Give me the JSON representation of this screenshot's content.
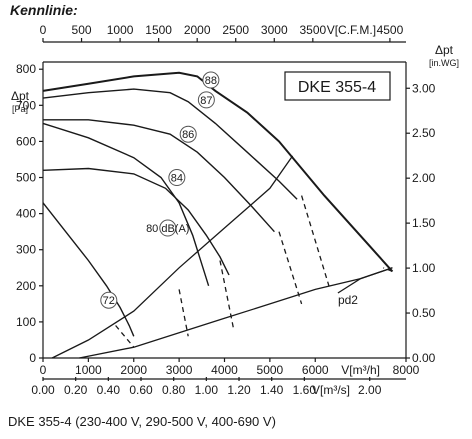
{
  "heading": "Kennlinie:",
  "caption": "DKE 355-4 (230-400 V, 290-500 V, 400-690 V)",
  "chart_data": {
    "type": "line",
    "title": "DKE 355-4",
    "colors": {
      "line": "#1a1a1a",
      "grid": "#d8d8d8"
    },
    "x_bottom": {
      "label": "V[m³/h]",
      "ticks": [
        0,
        1000,
        2000,
        3000,
        4000,
        5000,
        6000,
        8000
      ],
      "range": [
        0,
        8000
      ]
    },
    "x_bottom2": {
      "label": "V[m³/s]",
      "ticks": [
        "0.00",
        "0.20",
        "0.40",
        "0.60",
        "0.80",
        "1.00",
        "1.20",
        "1.40",
        "1.60",
        "2.00"
      ]
    },
    "x_top": {
      "label": "V[C.F.M.]",
      "ticks": [
        0,
        500,
        1000,
        1500,
        2000,
        2500,
        3000,
        3500,
        4500
      ]
    },
    "y_left": {
      "label": "Δpt",
      "sublabel": "[Pa]",
      "ticks": [
        0,
        100,
        200,
        300,
        400,
        500,
        600,
        700,
        800
      ],
      "range": [
        0,
        820
      ]
    },
    "y_right": {
      "label": "Δpt",
      "sublabel": "[in.WG]",
      "ticks": [
        "0.00",
        "0.50",
        "1.00",
        "1.50",
        "2.00",
        "2.50",
        "3.00"
      ]
    },
    "pd2_label": "pd2",
    "grid": false,
    "curves": [
      {
        "label": "88",
        "points": [
          [
            0,
            740
          ],
          [
            1000,
            760
          ],
          [
            2000,
            780
          ],
          [
            3000,
            790
          ],
          [
            3400,
            780
          ],
          [
            3800,
            740
          ],
          [
            4500,
            680
          ],
          [
            5200,
            600
          ],
          [
            6200,
            450
          ],
          [
            7200,
            310
          ],
          [
            7700,
            240
          ]
        ]
      },
      {
        "label": "87",
        "points": [
          [
            0,
            720
          ],
          [
            1000,
            735
          ],
          [
            2000,
            745
          ],
          [
            2800,
            735
          ],
          [
            3200,
            710
          ],
          [
            3800,
            650
          ],
          [
            4500,
            570
          ],
          [
            5200,
            490
          ],
          [
            5600,
            440
          ]
        ]
      },
      {
        "label": "86",
        "points": [
          [
            0,
            660
          ],
          [
            1000,
            660
          ],
          [
            2000,
            645
          ],
          [
            2800,
            620
          ],
          [
            3400,
            570
          ],
          [
            4000,
            500
          ],
          [
            4600,
            420
          ],
          [
            5100,
            350
          ]
        ]
      },
      {
        "label": "84",
        "points": [
          [
            0,
            520
          ],
          [
            1000,
            525
          ],
          [
            2000,
            510
          ],
          [
            2700,
            470
          ],
          [
            3200,
            410
          ],
          [
            3600,
            340
          ],
          [
            3900,
            280
          ],
          [
            4100,
            230
          ]
        ]
      },
      {
        "label": "80 dB(A)",
        "points": [
          [
            0,
            650
          ],
          [
            1000,
            610
          ],
          [
            2000,
            555
          ],
          [
            2600,
            500
          ],
          [
            3000,
            430
          ],
          [
            3300,
            340
          ],
          [
            3550,
            240
          ],
          [
            3650,
            200
          ]
        ]
      },
      {
        "label": "72",
        "points": [
          [
            0,
            430
          ],
          [
            500,
            350
          ],
          [
            1000,
            270
          ],
          [
            1400,
            200
          ],
          [
            1700,
            140
          ],
          [
            1900,
            90
          ],
          [
            2000,
            60
          ]
        ]
      }
    ],
    "operating_limits": [
      [
        [
          1600,
          90
        ],
        [
          2000,
          30
        ]
      ],
      [
        [
          3000,
          190
        ],
        [
          3200,
          60
        ]
      ],
      [
        [
          3900,
          270
        ],
        [
          4200,
          80
        ]
      ],
      [
        [
          5200,
          350
        ],
        [
          5700,
          150
        ]
      ],
      [
        [
          5700,
          450
        ],
        [
          6300,
          200
        ]
      ],
      [
        [
          7700,
          240
        ],
        [
          7500,
          250
        ]
      ]
    ],
    "system_curves": [
      {
        "label": "pd2",
        "points": [
          [
            800,
            0
          ],
          [
            2000,
            30
          ],
          [
            3000,
            70
          ],
          [
            4000,
            110
          ],
          [
            5000,
            150
          ],
          [
            6000,
            190
          ],
          [
            7000,
            220
          ],
          [
            7700,
            250
          ]
        ]
      },
      {
        "points": [
          [
            200,
            0
          ],
          [
            1000,
            50
          ],
          [
            2000,
            130
          ],
          [
            3000,
            250
          ],
          [
            4000,
            360
          ],
          [
            5000,
            470
          ],
          [
            5500,
            560
          ]
        ]
      },
      {
        "points": [
          [
            7700,
            250
          ],
          [
            7000,
            220
          ],
          [
            6500,
            180
          ]
        ]
      }
    ]
  }
}
